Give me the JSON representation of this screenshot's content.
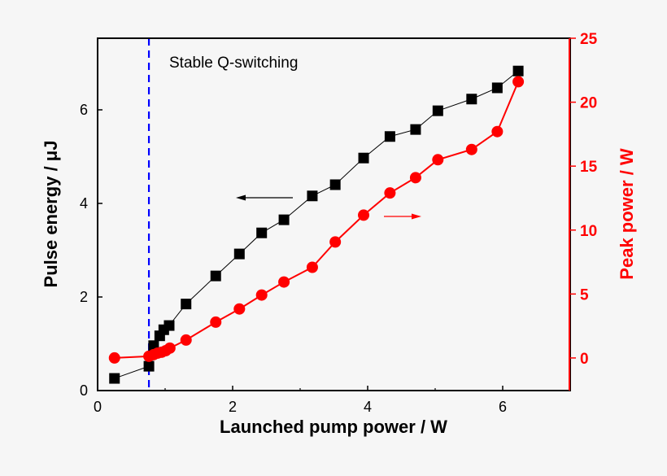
{
  "chart_data": {
    "type": "line",
    "title": "",
    "annotation": "Stable Q-switching",
    "xlabel": "Launched pump power / W",
    "ylabel": "Pulse energy / μJ",
    "y2label": "Peak power / W",
    "xlim": [
      0,
      7
    ],
    "ylim": [
      0,
      7.53
    ],
    "y2lim": [
      -2.55,
      25
    ],
    "xticks": [
      "0",
      "2",
      "4",
      "6"
    ],
    "yticks": [
      "0",
      "2",
      "4",
      "6"
    ],
    "y2ticks": [
      "0",
      "5",
      "10",
      "15",
      "20",
      "25"
    ],
    "threshold_line_x": 0.76,
    "grid": false,
    "colors": {
      "pulse_energy": "#000000",
      "peak_power": "#ff0000",
      "threshold": "#0000ff"
    },
    "series": [
      {
        "name": "Pulse energy",
        "axis": "left",
        "marker": "square",
        "x": [
          0.25,
          0.76,
          0.83,
          0.92,
          0.98,
          1.06,
          1.31,
          1.75,
          2.1,
          2.43,
          2.76,
          3.18,
          3.52,
          3.94,
          4.33,
          4.71,
          5.04,
          5.54,
          5.92,
          6.23
        ],
        "y": [
          0.26,
          0.52,
          0.96,
          1.17,
          1.3,
          1.39,
          1.85,
          2.45,
          2.92,
          3.37,
          3.65,
          4.16,
          4.4,
          4.97,
          5.43,
          5.58,
          5.98,
          6.23,
          6.47,
          6.83
        ]
      },
      {
        "name": "Peak power",
        "axis": "right",
        "marker": "circle",
        "x": [
          0.25,
          0.76,
          0.83,
          0.89,
          0.95,
          1.01,
          1.07,
          1.31,
          1.75,
          2.1,
          2.43,
          2.76,
          3.18,
          3.52,
          3.94,
          4.33,
          4.71,
          5.04,
          5.54,
          5.92,
          6.23
        ],
        "y": [
          0.0,
          0.13,
          0.26,
          0.38,
          0.45,
          0.57,
          0.77,
          1.4,
          2.8,
          3.83,
          4.92,
          5.94,
          7.09,
          9.07,
          11.17,
          12.9,
          14.1,
          15.5,
          16.3,
          17.7,
          21.6
        ]
      }
    ]
  }
}
